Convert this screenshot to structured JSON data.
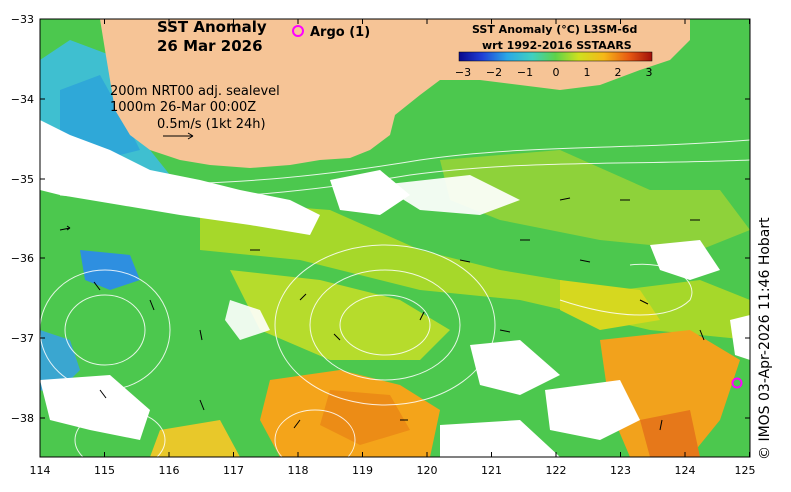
{
  "title": {
    "line1": "SST Anomaly",
    "line2": "26 Mar 2026"
  },
  "argo": {
    "label": "Argo (1)",
    "color": "#ff00ff"
  },
  "colorbar": {
    "title_line1": "SST Anomaly (°C) L3SM-6d",
    "title_line2": "wrt 1992-2016 SSTAARS",
    "ticks": [
      "−3",
      "−2",
      "−1",
      "0",
      "1",
      "2",
      "3"
    ],
    "range": [
      -3,
      3
    ]
  },
  "info": {
    "line1": "200m  NRT00 adj. sealevel",
    "line2": "1000m 26-Mar 00:00Z",
    "line3": "0.5m/s (1kt 24h)"
  },
  "credit": "© IMOS 03-Apr-2026 11:46 Hobart",
  "axes": {
    "x_ticks": [
      "114",
      "115",
      "116",
      "117",
      "118",
      "119",
      "120",
      "121",
      "122",
      "123",
      "124",
      "125"
    ],
    "y_ticks": [
      "−33",
      "−34",
      "−35",
      "−36",
      "−37",
      "−38"
    ],
    "lon_range": [
      114,
      125
    ],
    "lat_range": [
      -38.5,
      -33
    ]
  },
  "colors": {
    "land": "#f6c496",
    "nodata": "#ffffff",
    "frame": "#000000"
  }
}
